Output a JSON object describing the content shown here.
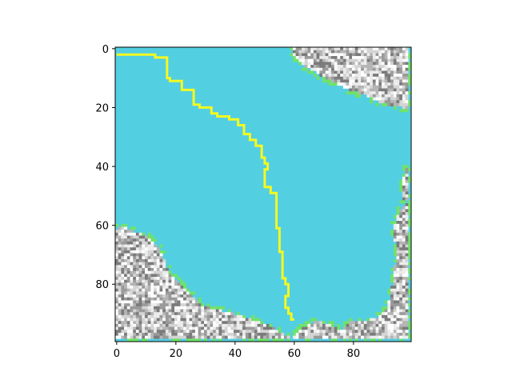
{
  "chart_data": {
    "type": "heatmap",
    "title": "",
    "xlabel": "",
    "ylabel": "",
    "grid": false,
    "xlim": [
      0,
      99
    ],
    "ylim": [
      99,
      0
    ],
    "x_ticks": [
      {
        "value": 0,
        "label": "0"
      },
      {
        "value": 20,
        "label": "20"
      },
      {
        "value": 40,
        "label": "40"
      },
      {
        "value": 60,
        "label": "60"
      },
      {
        "value": 80,
        "label": "80"
      }
    ],
    "y_ticks": [
      {
        "value": 0,
        "label": "0"
      },
      {
        "value": 20,
        "label": "20"
      },
      {
        "value": 40,
        "label": "40"
      },
      {
        "value": 60,
        "label": "60"
      },
      {
        "value": 80,
        "label": "80"
      }
    ],
    "colors": {
      "water": "#53cfe2",
      "shore": "#6fe26a",
      "path": "#f4f920",
      "terrain_dark": "#7b7b7b",
      "terrain_light": "#ffffff"
    },
    "grid_size": [
      100,
      100
    ],
    "regions": {
      "top_right_terrain": [
        [
          60,
          0
        ],
        [
          99,
          0
        ],
        [
          99,
          21
        ],
        [
          90,
          19
        ],
        [
          84,
          16
        ],
        [
          78,
          14
        ],
        [
          72,
          11
        ],
        [
          65,
          7
        ],
        [
          60,
          3
        ]
      ],
      "left_terrain": [
        [
          0,
          62
        ],
        [
          3,
          61
        ],
        [
          7,
          63
        ],
        [
          11,
          64
        ],
        [
          14,
          67
        ],
        [
          16,
          71
        ],
        [
          18,
          76
        ],
        [
          21,
          79
        ],
        [
          24,
          82
        ],
        [
          27,
          85
        ],
        [
          30,
          88
        ],
        [
          34,
          89
        ],
        [
          38,
          90
        ],
        [
          42,
          91
        ],
        [
          48,
          93
        ],
        [
          53,
          95
        ],
        [
          56,
          97
        ],
        [
          60,
          99
        ],
        [
          0,
          99
        ]
      ],
      "bottom_terrain": [
        [
          60,
          99
        ],
        [
          64,
          95
        ],
        [
          68,
          93
        ],
        [
          72,
          94
        ],
        [
          76,
          96
        ],
        [
          80,
          93
        ],
        [
          84,
          93
        ],
        [
          88,
          92
        ],
        [
          91,
          90
        ],
        [
          93,
          85
        ],
        [
          94,
          78
        ],
        [
          95,
          70
        ],
        [
          94,
          62
        ],
        [
          96,
          56
        ],
        [
          99,
          52
        ],
        [
          99,
          99
        ]
      ],
      "right_strip_terrain": [
        [
          99,
          40
        ],
        [
          97,
          46
        ],
        [
          97,
          52
        ],
        [
          99,
          52
        ]
      ]
    },
    "path": [
      [
        0,
        2
      ],
      [
        13,
        2
      ],
      [
        17,
        3
      ],
      [
        17,
        7
      ],
      [
        18,
        10
      ],
      [
        22,
        11
      ],
      [
        23,
        14
      ],
      [
        26,
        14
      ],
      [
        26,
        17
      ],
      [
        28,
        19
      ],
      [
        32,
        20
      ],
      [
        34,
        22
      ],
      [
        38,
        23
      ],
      [
        41,
        24
      ],
      [
        43,
        26
      ],
      [
        45,
        29
      ],
      [
        47,
        31
      ],
      [
        49,
        33
      ],
      [
        50,
        37
      ],
      [
        51,
        39
      ],
      [
        50,
        41
      ],
      [
        50,
        46
      ],
      [
        52,
        47
      ],
      [
        54,
        49
      ],
      [
        54,
        54
      ],
      [
        55,
        61
      ],
      [
        55,
        66
      ],
      [
        56,
        69
      ],
      [
        56,
        74
      ],
      [
        57,
        78
      ],
      [
        58,
        80
      ],
      [
        57,
        84
      ],
      [
        57,
        86
      ],
      [
        58,
        88
      ],
      [
        59,
        90
      ],
      [
        60,
        92
      ]
    ]
  }
}
